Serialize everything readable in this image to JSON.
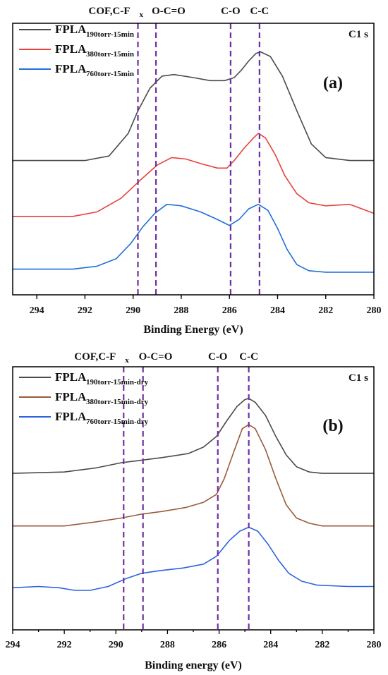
{
  "chart_data": [
    {
      "panel": "(a)",
      "type": "line",
      "title": "C1 s",
      "xlabel": "Binding Energy (eV)",
      "xlim": [
        295,
        280
      ],
      "x_ticks": [
        294,
        292,
        290,
        288,
        286,
        284,
        282,
        280
      ],
      "reference_lines": [
        {
          "x": 289.8,
          "label": "COF,C-F",
          "sub": "x"
        },
        {
          "x": 289.05,
          "label": "O-C=O"
        },
        {
          "x": 285.95,
          "label": "C-O"
        },
        {
          "x": 284.75,
          "label": "C-C"
        }
      ],
      "series": [
        {
          "name": "FPLA",
          "sub": "190torr-15min",
          "color": "#4a4a4a",
          "x": [
            295,
            292,
            291,
            290.2,
            289.8,
            289.3,
            288.8,
            288.3,
            287.5,
            286.8,
            286.2,
            285.8,
            285.5,
            285.2,
            284.9,
            284.7,
            284.3,
            283.8,
            283.2,
            282.6,
            282,
            281,
            280
          ],
          "y": [
            0.27,
            0.27,
            0.3,
            0.45,
            0.6,
            0.75,
            0.83,
            0.84,
            0.82,
            0.8,
            0.8,
            0.82,
            0.87,
            0.93,
            0.98,
            0.99,
            0.96,
            0.83,
            0.6,
            0.38,
            0.29,
            0.27,
            0.27
          ]
        },
        {
          "name": "FPLA",
          "sub": "380torr-15min",
          "color": "#e8413c",
          "x": [
            295,
            292.5,
            291.5,
            290.5,
            289.7,
            289,
            288.4,
            287.8,
            287.2,
            286.5,
            286.1,
            285.8,
            285.4,
            285,
            284.8,
            284.5,
            284.1,
            283.7,
            283.2,
            282.7,
            282,
            281,
            280
          ],
          "y": [
            -0.1,
            -0.1,
            -0.07,
            0.02,
            0.14,
            0.24,
            0.29,
            0.28,
            0.25,
            0.22,
            0.22,
            0.27,
            0.35,
            0.42,
            0.45,
            0.42,
            0.31,
            0.17,
            0.05,
            -0.01,
            -0.03,
            -0.02,
            -0.08
          ]
        },
        {
          "name": "FPLA",
          "sub": "760torr-15min",
          "color": "#1f6fdb",
          "x": [
            295,
            292.5,
            291.5,
            290.7,
            290.1,
            289.6,
            289.1,
            288.6,
            288,
            287.2,
            286.5,
            286,
            285.6,
            285.2,
            284.8,
            284.4,
            284,
            283.6,
            283.2,
            282.7,
            282,
            281,
            280
          ],
          "y": [
            -0.45,
            -0.45,
            -0.43,
            -0.38,
            -0.28,
            -0.17,
            -0.08,
            -0.02,
            -0.03,
            -0.07,
            -0.12,
            -0.16,
            -0.12,
            -0.05,
            -0.02,
            -0.06,
            -0.18,
            -0.32,
            -0.42,
            -0.46,
            -0.47,
            -0.47,
            -0.47
          ]
        }
      ]
    },
    {
      "panel": "(b)",
      "type": "line",
      "title": "C1 s",
      "xlabel": "Binding energy (eV)",
      "xlim": [
        294,
        280
      ],
      "x_ticks": [
        294,
        292,
        290,
        288,
        286,
        284,
        282,
        280
      ],
      "reference_lines": [
        {
          "x": 289.7,
          "label": "COF,C-F",
          "sub": "x"
        },
        {
          "x": 288.95,
          "label": "O-C=O"
        },
        {
          "x": 286.05,
          "label": "C-O"
        },
        {
          "x": 284.85,
          "label": "C-C"
        }
      ],
      "series": [
        {
          "name": "FPLA",
          "sub": "190torr-15min-dry",
          "color": "#4a4a4a",
          "x": [
            294,
            292,
            290.8,
            289.8,
            289,
            288.2,
            287.2,
            286.6,
            286.1,
            285.7,
            285.3,
            285,
            284.85,
            284.6,
            284.2,
            283.8,
            283.4,
            283,
            282.5,
            282,
            281,
            280
          ],
          "y": [
            0.44,
            0.45,
            0.48,
            0.52,
            0.54,
            0.56,
            0.59,
            0.64,
            0.72,
            0.84,
            0.95,
            1.0,
            1.01,
            0.98,
            0.88,
            0.72,
            0.58,
            0.49,
            0.45,
            0.44,
            0.44,
            0.44
          ]
        },
        {
          "name": "FPLA",
          "sub": "380torr-15min-dry",
          "color": "#9a5a3a",
          "x": [
            294,
            292,
            290.8,
            289.8,
            289,
            288.2,
            287.3,
            286.6,
            286.1,
            285.8,
            285.4,
            285.1,
            284.85,
            284.6,
            284.2,
            283.8,
            283.4,
            283,
            282.5,
            282,
            281,
            280
          ],
          "y": [
            0.04,
            0.04,
            0.07,
            0.1,
            0.13,
            0.15,
            0.18,
            0.22,
            0.28,
            0.4,
            0.62,
            0.78,
            0.81,
            0.78,
            0.62,
            0.4,
            0.2,
            0.1,
            0.06,
            0.04,
            0.04,
            0.04
          ]
        },
        {
          "name": "FPLA",
          "sub": "760torr-15min-dry",
          "color": "#2b63e0",
          "x": [
            294,
            293,
            292.2,
            291.6,
            291,
            290.3,
            289.6,
            289,
            288.3,
            287.4,
            286.6,
            286.1,
            285.6,
            285.2,
            284.85,
            284.5,
            284.1,
            283.7,
            283.3,
            282.8,
            282.2,
            281,
            280
          ],
          "y": [
            -0.43,
            -0.42,
            -0.43,
            -0.45,
            -0.45,
            -0.42,
            -0.36,
            -0.32,
            -0.3,
            -0.28,
            -0.25,
            -0.19,
            -0.07,
            0.0,
            0.03,
            0.0,
            -0.1,
            -0.22,
            -0.32,
            -0.38,
            -0.41,
            -0.42,
            -0.42
          ]
        }
      ]
    }
  ]
}
